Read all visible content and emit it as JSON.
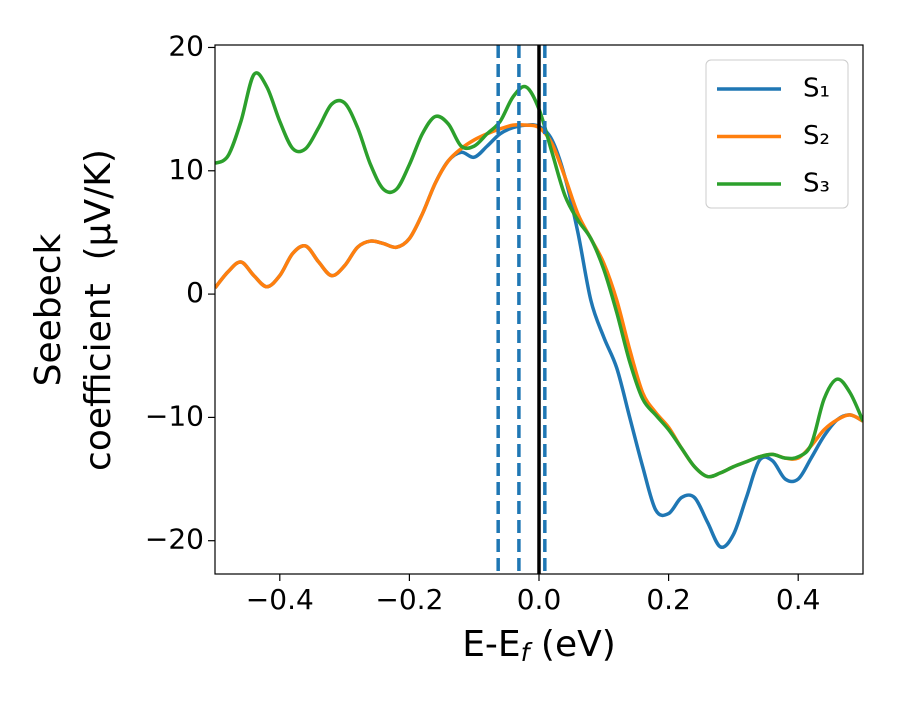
{
  "chart_data": {
    "type": "line",
    "xlabel": [
      "E-E",
      "f",
      " (eV)"
    ],
    "ylabel": [
      "Seebeck",
      "coefficient  (μV/K)"
    ],
    "x": [
      -0.5,
      -0.48,
      -0.46,
      -0.44,
      -0.42,
      -0.4,
      -0.38,
      -0.36,
      -0.34,
      -0.32,
      -0.3,
      -0.28,
      -0.26,
      -0.24,
      -0.22,
      -0.2,
      -0.18,
      -0.16,
      -0.14,
      -0.12,
      -0.1,
      -0.08,
      -0.06,
      -0.04,
      -0.02,
      0,
      0.02,
      0.04,
      0.06,
      0.08,
      0.1,
      0.12,
      0.14,
      0.16,
      0.18,
      0.2,
      0.22,
      0.24,
      0.26,
      0.28,
      0.3,
      0.32,
      0.34,
      0.36,
      0.38,
      0.4,
      0.42,
      0.44,
      0.46,
      0.48,
      0.5
    ],
    "series": [
      {
        "name": "S₁",
        "color": "#1f77b4",
        "values": [
          0.5,
          1.8,
          2.6,
          1.5,
          0.6,
          1.5,
          3.3,
          3.9,
          2.6,
          1.5,
          2.3,
          3.8,
          4.3,
          4.1,
          3.8,
          4.5,
          6.5,
          9,
          10.8,
          11.5,
          11.1,
          12,
          13,
          13.5,
          13.7,
          13.6,
          12.5,
          9.5,
          5,
          -0.5,
          -3.5,
          -6,
          -10,
          -14,
          -17.5,
          -17.8,
          -16.5,
          -16.5,
          -18.5,
          -20.5,
          -19.5,
          -16.5,
          -13.5,
          -13.5,
          -15,
          -15,
          -13.3,
          -11.5,
          -10.2,
          -9.8,
          -10.3
        ]
      },
      {
        "name": "S₂",
        "color": "#ff7f0e",
        "values": [
          0.5,
          1.8,
          2.6,
          1.5,
          0.6,
          1.5,
          3.3,
          3.9,
          2.6,
          1.5,
          2.3,
          3.8,
          4.3,
          4.1,
          3.8,
          4.5,
          6.5,
          9,
          10.8,
          11.8,
          12.5,
          13,
          13.4,
          13.7,
          13.7,
          13.5,
          12.2,
          9.5,
          6.5,
          4.5,
          2.5,
          -0.5,
          -4.5,
          -8,
          -9.6,
          -10.8,
          -12.5,
          -14,
          -14.8,
          -14.5,
          -14,
          -13.6,
          -13.2,
          -13,
          -13.3,
          -13.3,
          -12.3,
          -11,
          -10.2,
          -9.8,
          -10.3
        ]
      },
      {
        "name": "S₃",
        "color": "#2ca02c",
        "values": [
          10.6,
          11.2,
          14,
          17.8,
          16.8,
          14,
          11.8,
          11.8,
          13.5,
          15.4,
          15.5,
          13.5,
          10.5,
          8.5,
          8.5,
          10.5,
          13,
          14.4,
          13.8,
          12,
          12,
          13,
          14,
          16,
          16.8,
          15,
          11.5,
          8,
          6,
          4.5,
          2,
          -1.5,
          -5.5,
          -8.5,
          -9.8,
          -11,
          -12.5,
          -14,
          -14.8,
          -14.5,
          -14,
          -13.6,
          -13.2,
          -13,
          -13.3,
          -13.2,
          -12.2,
          -8.5,
          -6.9,
          -8,
          -10.3
        ]
      }
    ],
    "vlines": [
      {
        "x": -0.063,
        "color": "#1f77b4",
        "dashed": true
      },
      {
        "x": -0.031,
        "color": "#1f77b4",
        "dashed": true
      },
      {
        "x": 0.009,
        "color": "#1f77b4",
        "dashed": true
      },
      {
        "x": 0,
        "color": "#000000",
        "dashed": false
      }
    ],
    "xlim": [
      -0.5,
      0.5
    ],
    "xticks": [
      {
        "value": -0.4,
        "label": "−0.4"
      },
      {
        "value": -0.2,
        "label": "−0.2"
      },
      {
        "value": 0,
        "label": "0.0"
      },
      0.2,
      0.4
    ],
    "ylim": [
      -22.7,
      20.2
    ],
    "yticks": [
      {
        "value": -20,
        "label": "−20"
      },
      {
        "value": -10,
        "label": "−10"
      },
      0,
      10,
      20
    ],
    "grid": false,
    "legend": "upper right"
  }
}
